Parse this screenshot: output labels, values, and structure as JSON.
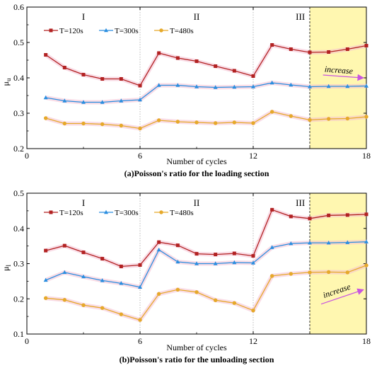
{
  "colors": {
    "series": [
      "#b22222",
      "#2a8ee0",
      "#e6a92a"
    ],
    "band_fill": "#fff7b0",
    "halo": "#f4c0d2",
    "divider": "#aaaaaa",
    "arrow": "#c855e0"
  },
  "chart_data": [
    {
      "type": "line",
      "caption": "(a)Poisson's ratio for the loading section",
      "xlabel": "Number of cycles",
      "ylabel": "μ",
      "ylabel_sub": "u",
      "xlim": [
        0,
        18
      ],
      "ylim": [
        0.2,
        0.6
      ],
      "xticks": [
        0,
        6,
        12,
        18
      ],
      "yticks": [
        0.2,
        0.3,
        0.4,
        0.5,
        0.6
      ],
      "stage_dividers": [
        6,
        12,
        15,
        18
      ],
      "highlight_range": [
        15,
        18
      ],
      "stage_labels": [
        {
          "text": "I",
          "x": 3
        },
        {
          "text": "II",
          "x": 9
        },
        {
          "text": "III",
          "x": 14.5
        }
      ],
      "annotation": {
        "text": "increase",
        "x_from": 15.7,
        "x_to": 17.8,
        "y_from": 0.408,
        "y_to": 0.4
      },
      "x": [
        1,
        2,
        3,
        4,
        5,
        6,
        7,
        8,
        9,
        10,
        11,
        12,
        13,
        14,
        15,
        16,
        17,
        18
      ],
      "series": [
        {
          "name": "T=120s",
          "marker": "square",
          "values": [
            0.465,
            0.429,
            0.409,
            0.397,
            0.397,
            0.378,
            0.47,
            0.456,
            0.447,
            0.433,
            0.42,
            0.405,
            0.493,
            0.481,
            0.472,
            0.473,
            0.481,
            0.491
          ]
        },
        {
          "name": "T=300s",
          "marker": "triangle",
          "values": [
            0.344,
            0.335,
            0.331,
            0.331,
            0.335,
            0.338,
            0.379,
            0.379,
            0.375,
            0.373,
            0.374,
            0.375,
            0.386,
            0.38,
            0.375,
            0.376,
            0.376,
            0.377
          ]
        },
        {
          "name": "T=480s",
          "marker": "circle",
          "values": [
            0.286,
            0.271,
            0.271,
            0.269,
            0.265,
            0.257,
            0.28,
            0.276,
            0.274,
            0.272,
            0.274,
            0.272,
            0.304,
            0.292,
            0.281,
            0.284,
            0.285,
            0.29
          ]
        }
      ]
    },
    {
      "type": "line",
      "caption": "(b)Poisson's ratio for the unloading section",
      "xlabel": "Number of cycles",
      "ylabel": "μ",
      "ylabel_sub": "l",
      "xlim": [
        0,
        18
      ],
      "ylim": [
        0.1,
        0.5
      ],
      "xticks": [
        0,
        6,
        12,
        18
      ],
      "yticks": [
        0.1,
        0.2,
        0.3,
        0.4,
        0.5
      ],
      "stage_dividers": [
        6,
        12,
        15,
        18
      ],
      "highlight_range": [
        15,
        18
      ],
      "stage_labels": [
        {
          "text": "I",
          "x": 3
        },
        {
          "text": "II",
          "x": 9
        },
        {
          "text": "III",
          "x": 14.5
        }
      ],
      "annotation": {
        "text": "increase",
        "x_from": 15.6,
        "x_to": 17.8,
        "y_from": 0.185,
        "y_to": 0.225
      },
      "x": [
        1,
        2,
        3,
        4,
        5,
        6,
        7,
        8,
        9,
        10,
        11,
        12,
        13,
        14,
        15,
        16,
        17,
        18
      ],
      "series": [
        {
          "name": "T=120s",
          "marker": "square",
          "values": [
            0.337,
            0.351,
            0.332,
            0.314,
            0.292,
            0.296,
            0.361,
            0.352,
            0.328,
            0.326,
            0.329,
            0.322,
            0.453,
            0.434,
            0.428,
            0.437,
            0.438,
            0.44
          ]
        },
        {
          "name": "T=300s",
          "marker": "triangle",
          "values": [
            0.253,
            0.275,
            0.263,
            0.252,
            0.244,
            0.233,
            0.339,
            0.305,
            0.3,
            0.3,
            0.303,
            0.302,
            0.346,
            0.357,
            0.359,
            0.359,
            0.36,
            0.362
          ]
        },
        {
          "name": "T=480s",
          "marker": "circle",
          "values": [
            0.202,
            0.197,
            0.182,
            0.174,
            0.156,
            0.14,
            0.214,
            0.226,
            0.219,
            0.196,
            0.188,
            0.167,
            0.265,
            0.271,
            0.275,
            0.276,
            0.275,
            0.295
          ]
        }
      ]
    }
  ]
}
